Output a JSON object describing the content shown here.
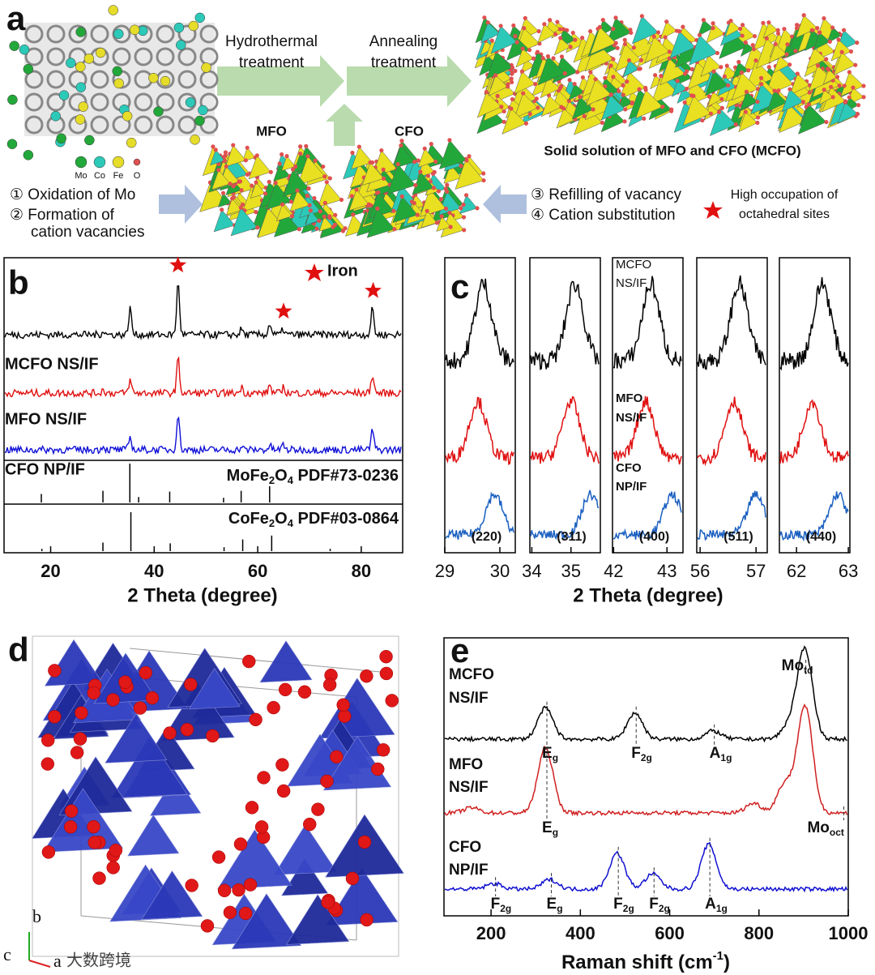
{
  "a": {
    "label": "a",
    "step1": [
      "Hydrothermal",
      "treatment"
    ],
    "step2": [
      "Annealing",
      "treatment"
    ],
    "mfo": "MFO",
    "cfo": "CFO",
    "product": "Solid solution of MFO and CFO (MCFO)",
    "elements": [
      {
        "name": "Mo",
        "color": "#22a83a"
      },
      {
        "name": "Co",
        "color": "#2cc9b8"
      },
      {
        "name": "Fe",
        "color": "#e6dc2a"
      },
      {
        "name": "O",
        "color": "#e05050"
      }
    ],
    "left_notes": [
      "① Oxidation of Mo",
      "② Formation of",
      "cation vacancies"
    ],
    "right_notes": [
      "③ Refilling of vacancy",
      "④ Cation substitution"
    ],
    "star_note": [
      "High occupation of",
      "octahedral sites"
    ]
  },
  "b": {
    "label": "b",
    "xlim": [
      11,
      88
    ],
    "xticks": [
      20,
      40,
      60,
      80
    ],
    "xlabel": "2 Theta (degree)",
    "legend": "Iron",
    "iron_peaks": [
      44.6,
      65,
      82.3
    ],
    "series": [
      {
        "name": "MCFO NS/IF",
        "color": "#000000",
        "peaks": [
          [
            30.1,
            6
          ],
          [
            35.3,
            38
          ],
          [
            44.6,
            75
          ],
          [
            56.9,
            8
          ],
          [
            62.4,
            16
          ],
          [
            65,
            8
          ],
          [
            82.3,
            38
          ]
        ]
      },
      {
        "name": "MFO NS/IF",
        "color": "#e01010",
        "peaks": [
          [
            30.1,
            6
          ],
          [
            35.3,
            22
          ],
          [
            44.6,
            60
          ],
          [
            56.9,
            10
          ],
          [
            62.4,
            14
          ],
          [
            65,
            10
          ],
          [
            82.3,
            32
          ]
        ]
      },
      {
        "name": "CFO NP/IF",
        "color": "#1010d8",
        "peaks": [
          [
            30.1,
            8
          ],
          [
            35.3,
            25
          ],
          [
            44.6,
            72
          ],
          [
            56.9,
            6
          ],
          [
            62.4,
            8
          ],
          [
            65,
            10
          ],
          [
            82.3,
            40
          ]
        ]
      }
    ],
    "references": [
      {
        "formula": [
          "MoFe",
          "2",
          "O",
          "4",
          " PDF#73-0236"
        ],
        "sticks": [
          [
            18.2,
            22
          ],
          [
            30.1,
            30
          ],
          [
            35.3,
            100
          ],
          [
            37,
            14
          ],
          [
            43,
            28
          ],
          [
            53.4,
            12
          ],
          [
            56.8,
            30
          ],
          [
            62.3,
            42
          ]
        ]
      },
      {
        "formula": [
          "CoFe",
          "2",
          "O",
          "4",
          " PDF#03-0864"
        ],
        "sticks": [
          [
            18.3,
            6
          ],
          [
            30.1,
            22
          ],
          [
            35.5,
            100
          ],
          [
            43.1,
            20
          ],
          [
            53.5,
            10
          ],
          [
            57.1,
            30
          ],
          [
            62.7,
            40
          ],
          [
            74,
            6
          ]
        ]
      }
    ]
  },
  "c": {
    "label": "c",
    "xlabel": "2 Theta (degree)",
    "series": [
      {
        "name": [
          "MCFO",
          "NS/IF"
        ],
        "color": "#000000"
      },
      {
        "name": [
          "MFO",
          "NS/IF"
        ],
        "color": "#e01010"
      },
      {
        "name": [
          "CFO",
          "NP/IF"
        ],
        "color": "#1a5fc0"
      }
    ],
    "hkl_color": "#c0303a",
    "panels": [
      {
        "hkl": "(220)",
        "xlim": [
          29,
          30.28
        ],
        "xticks": [
          29,
          30
        ],
        "peaks": [
          29.7,
          29.6,
          29.9
        ]
      },
      {
        "hkl": "(311)",
        "xlim": [
          33.95,
          35.75
        ],
        "xticks": [
          34,
          35
        ],
        "peaks": [
          35.1,
          35.0,
          35.5
        ]
      },
      {
        "hkl": "(400)",
        "xlim": [
          41.98,
          43.3
        ],
        "xticks": [
          42,
          43
        ],
        "peaks": [
          42.7,
          42.6,
          43.1
        ]
      },
      {
        "hkl": "(511)",
        "xlim": [
          55.94,
          57.2
        ],
        "xticks": [
          56,
          57
        ],
        "peaks": [
          56.7,
          56.6,
          57.0
        ]
      },
      {
        "hkl": "(440)",
        "xlim": [
          61.67,
          63.03
        ],
        "xticks": [
          62,
          63
        ],
        "peaks": [
          62.5,
          62.3,
          62.8
        ]
      }
    ]
  },
  "d": {
    "label": "d",
    "axes": [
      "b",
      "c",
      "a"
    ],
    "watermark": "大数跨境"
  },
  "e": {
    "label": "e",
    "xlim": [
      100,
      1000
    ],
    "xticks": [
      200,
      400,
      600,
      800,
      1000
    ],
    "xlabel": [
      "Raman shift (cm",
      "-1",
      ")"
    ],
    "series": [
      {
        "name": [
          "MCFO",
          "NS/IF"
        ],
        "color": "#000000",
        "peaks": [
          [
            325,
            45
          ],
          [
            525,
            38
          ],
          [
            700,
            12
          ],
          [
            905,
            130
          ],
          [
            870,
            20
          ]
        ]
      },
      {
        "name": [
          "MFO",
          "NS/IF"
        ],
        "color": "#d02020",
        "peaks": [
          [
            160,
            8
          ],
          [
            325,
            100
          ],
          [
            860,
            45
          ],
          [
            905,
            165
          ],
          [
            790,
            15
          ]
        ]
      },
      {
        "name": [
          "CFO",
          "NP/IF"
        ],
        "color": "#1010d0",
        "peaks": [
          [
            210,
            8
          ],
          [
            335,
            14
          ],
          [
            485,
            52
          ],
          [
            565,
            22
          ],
          [
            690,
            65
          ]
        ]
      }
    ],
    "annotations": [
      {
        "series": 0,
        "base": "E",
        "sub": "g",
        "shift": 325,
        "color": "#222222"
      },
      {
        "series": 0,
        "base": "F",
        "sub": "2g",
        "shift": 525,
        "color": "#1010d0"
      },
      {
        "series": 0,
        "base": "A",
        "sub": "1g",
        "shift": 700,
        "color": "#1010d0"
      },
      {
        "series": 0,
        "base": "Mo",
        "sub": "td",
        "shift": 905,
        "color": "#d02020"
      },
      {
        "series": 1,
        "base": "E",
        "sub": "g",
        "shift": 325,
        "color": "#d02020"
      },
      {
        "series": 1,
        "base": "Mo",
        "sub": "oct",
        "shift": 990,
        "color": "#d02020"
      },
      {
        "series": 2,
        "base": "F",
        "sub": "2g",
        "shift": 210,
        "color": "#1010d0"
      },
      {
        "series": 2,
        "base": "E",
        "sub": "g",
        "shift": 335,
        "color": "#222222"
      },
      {
        "series": 2,
        "base": "F",
        "sub": "2g",
        "shift": 485,
        "color": "#1010d0"
      },
      {
        "series": 2,
        "base": "F",
        "sub": "2g",
        "shift": 565,
        "color": "#1010d0"
      },
      {
        "series": 2,
        "base": "A",
        "sub": "1g",
        "shift": 690,
        "color": "#1010d0"
      }
    ]
  }
}
